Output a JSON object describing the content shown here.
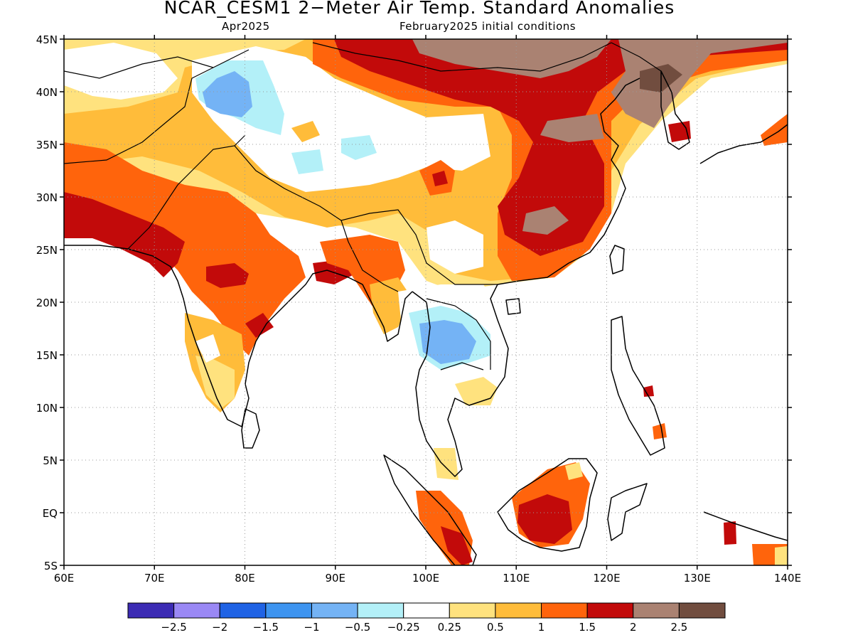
{
  "title": "NCAR_CESM1 2−Meter Air Temp. Standard Anomalies",
  "subtitle_left": "Apr2025",
  "subtitle_right": "February2025 initial conditions",
  "map": {
    "region": "South and East Asia",
    "lon_range": [
      60,
      140
    ],
    "lat_range": [
      -5,
      45
    ],
    "grid": "dotted",
    "lat_ticks": [
      "45N",
      "40N",
      "35N",
      "30N",
      "25N",
      "20N",
      "15N",
      "10N",
      "5N",
      "EQ",
      "5S"
    ],
    "lon_ticks": [
      "60E",
      "70E",
      "80E",
      "90E",
      "100E",
      "110E",
      "120E",
      "130E",
      "140E"
    ]
  },
  "colorbar": {
    "colors": [
      "#3c2bb4",
      "#9a88f5",
      "#1f63e5",
      "#3d94f0",
      "#74b3f5",
      "#b3f0f8",
      "#ffffff",
      "#ffe27e",
      "#ffbc3a",
      "#ff640c",
      "#c20a0a",
      "#aa8272",
      "#714d3f"
    ],
    "labels": [
      "−2.5",
      "−2",
      "−1.5",
      "−1",
      "−0.5",
      "−0.25",
      "0.25",
      "0.5",
      "1",
      "1.5",
      "2",
      "2.5"
    ]
  },
  "regions": {
    "north_china_mongolia_warm": "#c20a0a",
    "north_china_brown": "#aa8272",
    "tibet_neutral": "#ffffff",
    "india_orange": "#ff640c",
    "indochina_cool": "#74b3f5",
    "borneo_warm": "#c20a0a"
  }
}
